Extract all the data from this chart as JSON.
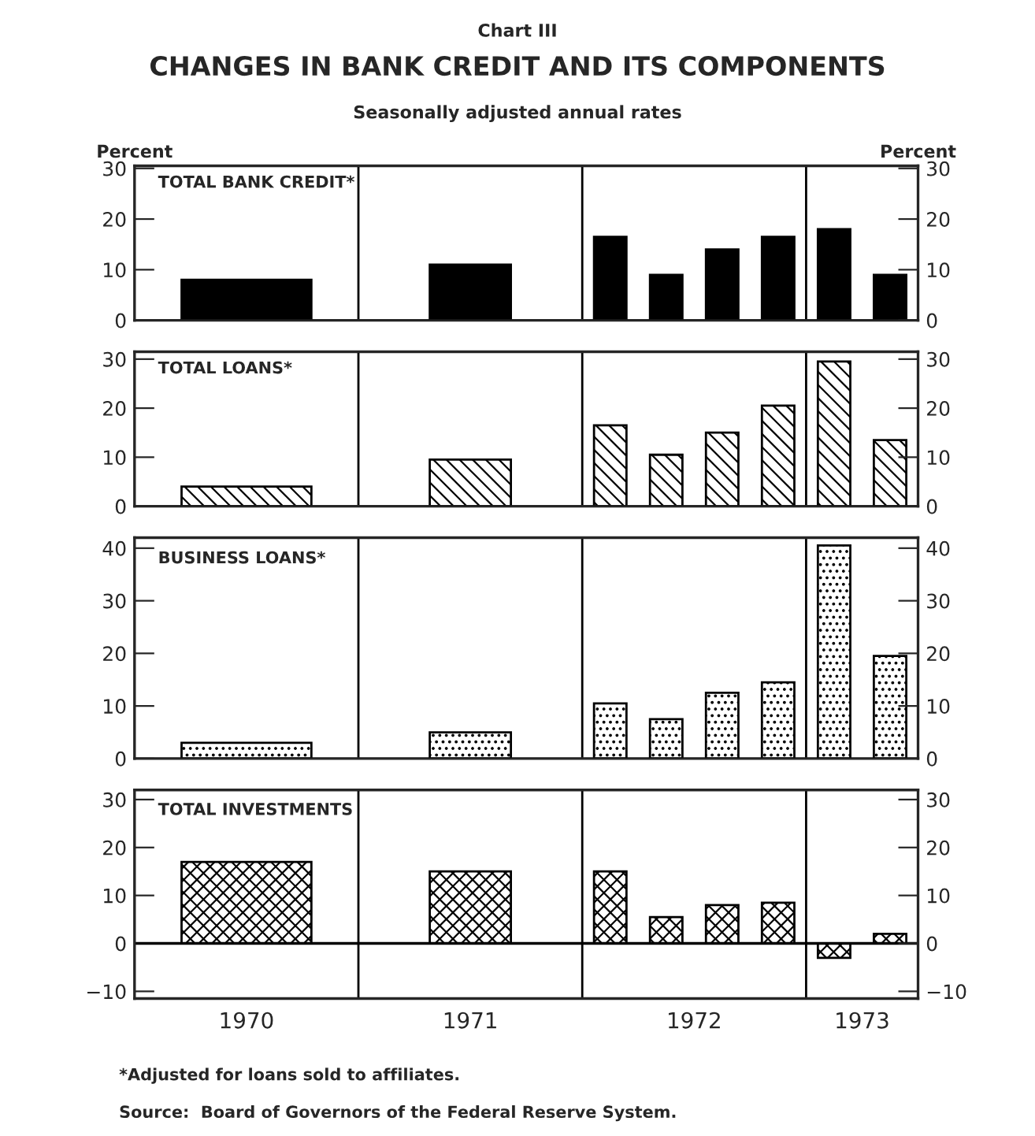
{
  "chart_data": [
    {
      "type": "bar",
      "title": "TOTAL BANK CREDIT*",
      "ylabel": "Percent",
      "y2label": "Percent",
      "annotations": [
        "Chart III",
        "CHANGES IN BANK CREDIT AND ITS COMPONENTS",
        "Seasonally adjusted annual rates"
      ],
      "x": [
        1970.5,
        1971.5,
        1972.125,
        1972.375,
        1972.625,
        1972.875,
        1973.125,
        1973.375
      ],
      "values": [
        8,
        11,
        16.5,
        9,
        14,
        16.5,
        18,
        9
      ],
      "color": "#000000",
      "xlim": [
        1970,
        1973.5
      ],
      "ylim": [
        0,
        30.5
      ],
      "yticks": [
        0,
        10,
        20,
        30
      ],
      "y2lim": [
        0,
        30.5
      ],
      "y2ticks": [
        0,
        10,
        20,
        30
      ],
      "tick_labels": "y",
      "ref_lines": [
        {
          "axis": "x",
          "value": 1971
        },
        {
          "axis": "x",
          "value": 1972
        },
        {
          "axis": "x",
          "value": 1973
        }
      ]
    },
    {
      "type": "bar",
      "title": "TOTAL LOANS*",
      "x": [
        1970.5,
        1971.5,
        1972.125,
        1972.375,
        1972.625,
        1972.875,
        1973.125,
        1973.375
      ],
      "values": [
        4,
        9.5,
        16.5,
        10.5,
        15,
        20.5,
        29.5,
        13.5
      ],
      "color": "#000000",
      "xlim": [
        1970,
        1973.5
      ],
      "ylim": [
        0,
        31.5
      ],
      "yticks": [
        0,
        10,
        20,
        30
      ],
      "y2lim": [
        0,
        31.5
      ],
      "y2ticks": [
        0,
        10,
        20,
        30
      ],
      "tick_labels": "y",
      "ref_lines": [
        {
          "axis": "x",
          "value": 1971
        },
        {
          "axis": "x",
          "value": 1972
        },
        {
          "axis": "x",
          "value": 1973
        }
      ]
    },
    {
      "type": "bar",
      "title": "BUSINESS LOANS*",
      "x": [
        1970.5,
        1971.5,
        1972.125,
        1972.375,
        1972.625,
        1972.875,
        1973.125,
        1973.375
      ],
      "values": [
        3,
        5,
        10.5,
        7.5,
        12.5,
        14.5,
        40.5,
        19.5
      ],
      "color": "#000000",
      "xlim": [
        1970,
        1973.5
      ],
      "ylim": [
        0,
        42
      ],
      "yticks": [
        0,
        10,
        20,
        30,
        40
      ],
      "y2lim": [
        0,
        42
      ],
      "y2ticks": [
        0,
        10,
        20,
        30,
        40
      ],
      "tick_labels": "y",
      "ref_lines": [
        {
          "axis": "x",
          "value": 1971
        },
        {
          "axis": "x",
          "value": 1972
        },
        {
          "axis": "x",
          "value": 1973
        }
      ]
    },
    {
      "type": "bar",
      "title": "TOTAL INVESTMENTS",
      "annotations": [
        "*Adjusted for loans sold to affiliates.",
        "Source:  Board of Governors of the Federal Reserve System."
      ],
      "x": [
        1970.5,
        1971.5,
        1972.125,
        1972.375,
        1972.625,
        1972.875,
        1973.125,
        1973.375
      ],
      "values": [
        17,
        15,
        15,
        5.5,
        8,
        8.5,
        -3,
        2
      ],
      "color": "#000000",
      "xlim": [
        1970,
        1973.5
      ],
      "xticks": [
        {
          "value": 1970.5,
          "label": "1970"
        },
        {
          "value": 1971.5,
          "label": "1971"
        },
        {
          "value": 1972.5,
          "label": "1972"
        },
        {
          "value": 1973.25,
          "label": "1973"
        }
      ],
      "ylim": [
        -11.5,
        32
      ],
      "yticks": [
        {
          "value": -10,
          "label": "−10"
        },
        0,
        10,
        20,
        30
      ],
      "y2lim": [
        -11.5,
        32
      ],
      "y2ticks": [
        {
          "value": -10,
          "label": "−10"
        },
        0,
        10,
        20,
        30
      ],
      "ref_lines": [
        {
          "axis": "x",
          "value": 1971
        },
        {
          "axis": "x",
          "value": 1972
        },
        {
          "axis": "x",
          "value": 1973
        },
        {
          "axis": "y",
          "value": 0
        }
      ]
    }
  ]
}
